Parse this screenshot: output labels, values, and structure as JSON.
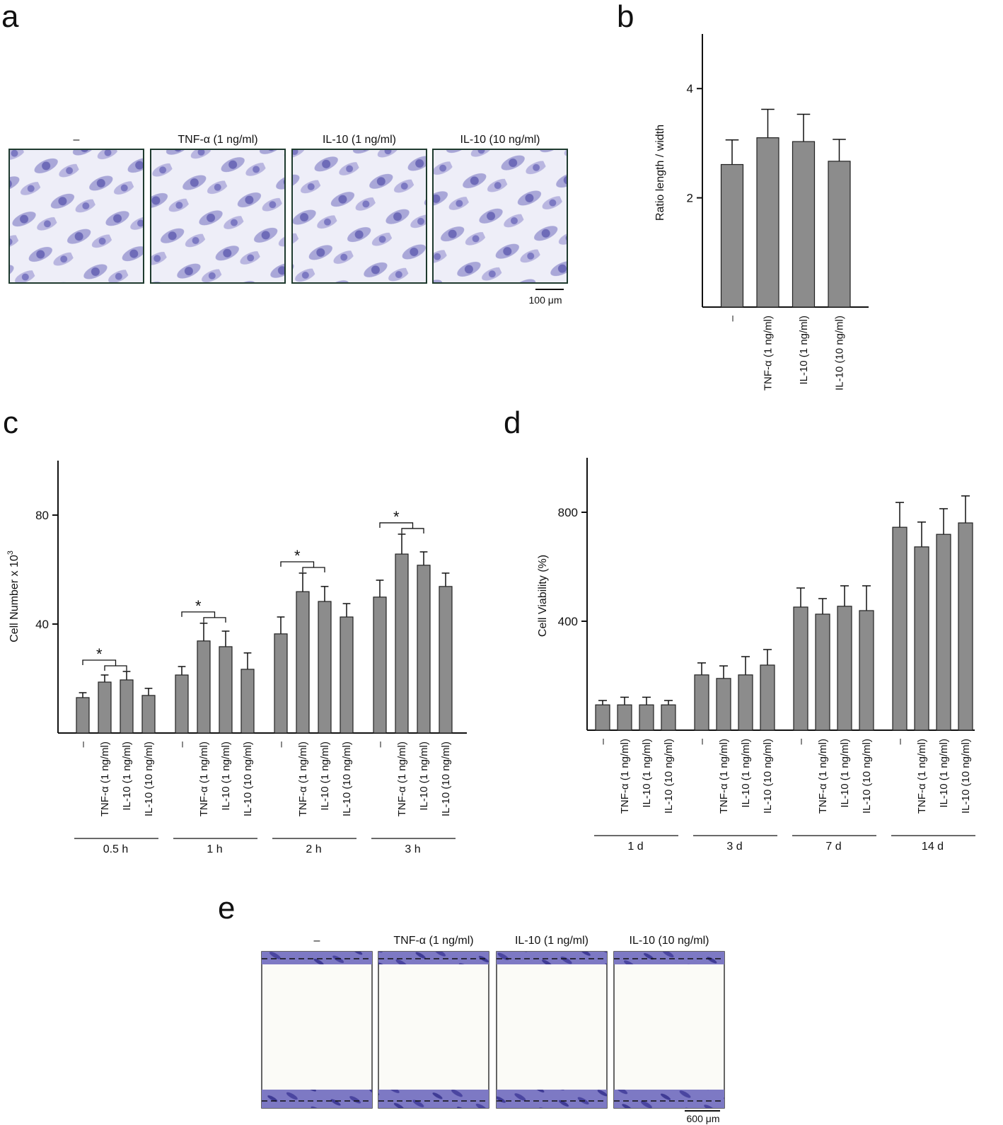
{
  "panel_labels": [
    "a",
    "b",
    "c",
    "d",
    "e"
  ],
  "panel_a": {
    "labels": [
      "–",
      "TNF-α (1 ng/ml)",
      "IL-10 (1 ng/ml)",
      "IL-10 (10 ng/ml)"
    ],
    "scale_bar": "100 μm"
  },
  "panel_e": {
    "labels": [
      "–",
      "TNF-α (1 ng/ml)",
      "IL-10 (1 ng/ml)",
      "IL-10 (10 ng/ml)"
    ],
    "scale_bar": "600 μm"
  },
  "chart_data": [
    {
      "type": "bar",
      "ylabel": "Ratio length / width",
      "categories": [
        "–",
        "TNF-α (1 ng/ml)",
        "IL-10 (1 ng/ml)",
        "IL-10 (10 ng/ml)"
      ],
      "values": [
        2.61,
        3.1,
        3.03,
        2.67
      ],
      "errors": [
        0.45,
        0.52,
        0.5,
        0.4
      ],
      "ylim": [
        0,
        5
      ],
      "yticks": [
        2,
        4
      ],
      "color": "#8c8c8c"
    },
    {
      "type": "bar",
      "ylabel": "Cell Number x 10",
      "ylabel_superscript": "3",
      "categories": [
        "–",
        "TNF-α (1 ng/ml)",
        "IL-10 (1 ng/ml)",
        "IL-10 (10 ng/ml)"
      ],
      "groups": [
        "0.5 h",
        "1 h",
        "2 h",
        "3 h"
      ],
      "values": [
        [
          13,
          18.7,
          19.5,
          13.8
        ],
        [
          21.3,
          33.8,
          31.7,
          23.4
        ],
        [
          36.4,
          51.9,
          48.3,
          42.6
        ],
        [
          49.9,
          65.7,
          61.6,
          53.8
        ]
      ],
      "errors": [
        [
          1.8,
          2.6,
          3.1,
          2.6
        ],
        [
          3.1,
          6.5,
          5.7,
          6
        ],
        [
          6.2,
          6.8,
          5.5,
          4.9
        ],
        [
          6.2,
          7.3,
          4.9,
          4.9
        ]
      ],
      "significance": [
        "*",
        "*",
        "*",
        "*"
      ],
      "ylim": [
        0,
        100
      ],
      "yticks": [
        40,
        80
      ],
      "color": "#8c8c8c"
    },
    {
      "type": "bar",
      "ylabel": "Cell Viability (%)",
      "categories": [
        "–",
        "TNF-α (1 ng/ml)",
        "IL-10 (1 ng/ml)",
        "IL-10 (10 ng/ml)"
      ],
      "groups": [
        "1 d",
        "3 d",
        "7 d",
        "14 d"
      ],
      "values": [
        [
          93,
          93,
          93,
          93
        ],
        [
          203,
          190,
          203,
          239
        ],
        [
          452,
          426,
          455,
          439
        ],
        [
          745,
          673,
          719,
          761
        ]
      ],
      "errors": [
        [
          16,
          28,
          28,
          16
        ],
        [
          44,
          46,
          67,
          57
        ],
        [
          70,
          57,
          75,
          91
        ],
        [
          91,
          91,
          94,
          99
        ]
      ],
      "ylim": [
        0,
        1000
      ],
      "yticks": [
        400,
        800
      ],
      "color": "#8c8c8c"
    }
  ]
}
